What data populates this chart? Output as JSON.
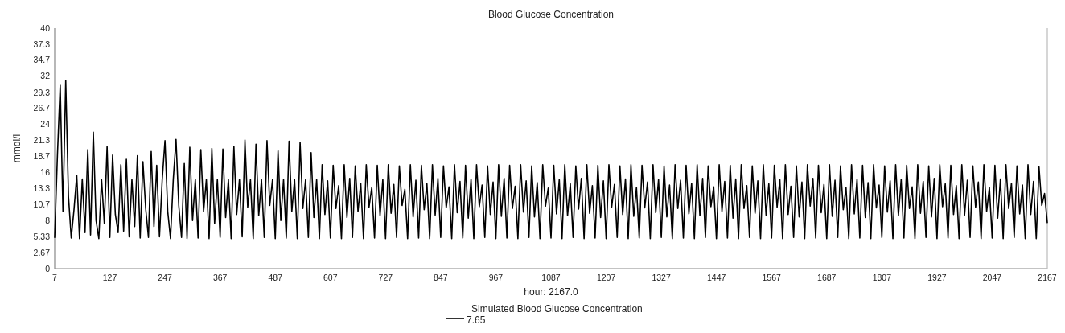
{
  "chart_data": {
    "type": "line",
    "title": "Blood Glucose Concentration",
    "xlabel": "hour: 2167.0",
    "ylabel": "mmol/l",
    "legend": "bottom",
    "annotations": [
      "7.65"
    ],
    "ref_lines": [
      {
        "axis": "x",
        "value": 2167,
        "color": "#bbbbbb"
      }
    ],
    "xlim": [
      7,
      2167
    ],
    "xticks": [
      7,
      127,
      247,
      367,
      487,
      607,
      727,
      847,
      967,
      1087,
      1207,
      1327,
      1447,
      1567,
      1687,
      1807,
      1927,
      2047,
      2167
    ],
    "ylim": [
      0,
      40
    ],
    "yticks": [
      0,
      2.67,
      5.33,
      8,
      10.7,
      13.3,
      16,
      18.7,
      21.3,
      24,
      26.7,
      29.3,
      32,
      34.7,
      37.3,
      40
    ],
    "x": [
      7,
      13,
      19,
      25,
      31,
      37,
      43,
      49,
      55,
      61,
      67,
      73,
      79,
      85,
      91,
      97,
      103,
      109,
      115,
      121,
      127,
      133,
      139,
      145,
      151,
      157,
      163,
      169,
      175,
      181,
      187,
      193,
      199,
      205,
      211,
      217,
      223,
      229,
      235,
      241,
      247,
      253,
      259,
      265,
      271,
      277,
      283,
      289,
      295,
      301,
      307,
      313,
      319,
      325,
      331,
      337,
      343,
      349,
      355,
      361,
      367,
      373,
      379,
      385,
      391,
      397,
      403,
      409,
      415,
      421,
      427,
      433,
      439,
      445,
      451,
      457,
      463,
      469,
      475,
      481,
      487,
      493,
      499,
      505,
      511,
      517,
      523,
      529,
      535,
      541,
      547,
      553,
      559,
      565,
      571,
      577,
      583,
      589,
      595,
      601,
      607,
      613,
      619,
      625,
      631,
      637,
      643,
      649,
      655,
      661,
      667,
      673,
      679,
      685,
      691,
      697,
      703,
      709,
      715,
      721,
      727,
      733,
      739,
      745,
      751,
      757,
      763,
      769,
      775,
      781,
      787,
      793,
      799,
      805,
      811,
      817,
      823,
      829,
      835,
      841,
      847,
      853,
      859,
      865,
      871,
      877,
      883,
      889,
      895,
      901,
      907,
      913,
      919,
      925,
      931,
      937,
      943,
      949,
      955,
      961,
      967,
      973,
      979,
      985,
      991,
      997,
      1003,
      1009,
      1015,
      1021,
      1027,
      1033,
      1039,
      1045,
      1051,
      1057,
      1063,
      1069,
      1075,
      1081,
      1087,
      1093,
      1099,
      1105,
      1111,
      1117,
      1123,
      1129,
      1135,
      1141,
      1147,
      1153,
      1159,
      1165,
      1171,
      1177,
      1183,
      1189,
      1195,
      1201,
      1207,
      1213,
      1219,
      1225,
      1231,
      1237,
      1243,
      1249,
      1255,
      1261,
      1267,
      1273,
      1279,
      1285,
      1291,
      1297,
      1303,
      1309,
      1315,
      1321,
      1327,
      1333,
      1339,
      1345,
      1351,
      1357,
      1363,
      1369,
      1375,
      1381,
      1387,
      1393,
      1399,
      1405,
      1411,
      1417,
      1423,
      1429,
      1435,
      1441,
      1447,
      1453,
      1459,
      1465,
      1471,
      1477,
      1483,
      1489,
      1495,
      1501,
      1507,
      1513,
      1519,
      1525,
      1531,
      1537,
      1543,
      1549,
      1555,
      1561,
      1567,
      1573,
      1579,
      1585,
      1591,
      1597,
      1603,
      1609,
      1615,
      1621,
      1627,
      1633,
      1639,
      1645,
      1651,
      1657,
      1663,
      1669,
      1675,
      1681,
      1687,
      1693,
      1699,
      1705,
      1711,
      1717,
      1723,
      1729,
      1735,
      1741,
      1747,
      1753,
      1759,
      1765,
      1771,
      1777,
      1783,
      1789,
      1795,
      1801,
      1807,
      1813,
      1819,
      1825,
      1831,
      1837,
      1843,
      1849,
      1855,
      1861,
      1867,
      1873,
      1879,
      1885,
      1891,
      1897,
      1903,
      1909,
      1915,
      1921,
      1927,
      1933,
      1939,
      1945,
      1951,
      1957,
      1963,
      1969,
      1975,
      1981,
      1987,
      1993,
      1999,
      2005,
      2011,
      2017,
      2023,
      2029,
      2035,
      2041,
      2047,
      2053,
      2059,
      2065,
      2071,
      2077,
      2083,
      2089,
      2095,
      2101,
      2107,
      2113,
      2119,
      2125,
      2131,
      2137,
      2143,
      2149,
      2155,
      2161,
      2167
    ],
    "series": [
      {
        "name": "Simulated Blood Glucose Concentration",
        "color": "#000000",
        "values": [
          5.2,
          19.0,
          30.5,
          9.5,
          31.3,
          12.0,
          5.1,
          9.8,
          15.5,
          5.0,
          14.9,
          6.0,
          19.8,
          5.6,
          22.7,
          8.0,
          5.0,
          14.8,
          7.5,
          20.3,
          5.2,
          18.9,
          9.0,
          6.0,
          17.3,
          6.2,
          18.2,
          5.3,
          14.8,
          7.0,
          18.8,
          5.1,
          17.8,
          10.0,
          5.2,
          19.5,
          7.0,
          17.2,
          5.3,
          14.8,
          21.3,
          9.5,
          5.0,
          14.8,
          21.5,
          10.5,
          5.2,
          17.5,
          5.0,
          20.2,
          8.0,
          14.8,
          5.1,
          19.8,
          9.5,
          14.8,
          5.0,
          20.0,
          7.5,
          14.8,
          5.2,
          19.9,
          8.5,
          14.8,
          5.0,
          20.3,
          9.0,
          14.8,
          5.3,
          21.4,
          10.2,
          14.8,
          5.0,
          20.7,
          8.8,
          14.8,
          5.2,
          21.3,
          10.5,
          14.8,
          5.0,
          19.6,
          8.0,
          14.8,
          5.1,
          21.2,
          9.5,
          14.8,
          5.0,
          21.0,
          10.0,
          14.8,
          5.2,
          19.3,
          8.5,
          14.8,
          5.0,
          17.3,
          9.0,
          14.6,
          5.1,
          17.2,
          10.0,
          13.8,
          5.0,
          17.3,
          8.5,
          15.0,
          5.2,
          17.1,
          9.5,
          14.2,
          5.0,
          17.3,
          10.2,
          13.5,
          5.1,
          17.2,
          8.8,
          14.8,
          5.0,
          17.3,
          9.2,
          14.0,
          5.2,
          17.1,
          10.5,
          13.2,
          5.0,
          17.3,
          8.6,
          14.7,
          5.1,
          17.2,
          9.8,
          14.1,
          5.0,
          17.3,
          8.9,
          15.0,
          5.2,
          17.1,
          10.1,
          13.6,
          5.0,
          17.3,
          9.3,
          14.5,
          5.1,
          17.2,
          8.4,
          14.9,
          5.0,
          17.3,
          10.3,
          13.9,
          5.2,
          17.1,
          9.0,
          14.4,
          5.0,
          17.3,
          8.7,
          15.0,
          5.1,
          17.2,
          10.0,
          13.7,
          5.0,
          17.3,
          9.4,
          14.6,
          5.2,
          17.1,
          8.6,
          14.3,
          5.0,
          17.3,
          10.4,
          13.4,
          5.1,
          17.2,
          9.1,
          14.8,
          5.0,
          17.3,
          8.8,
          14.1,
          5.2,
          17.1,
          9.9,
          15.0,
          5.0,
          17.3,
          9.2,
          13.8,
          5.1,
          17.2,
          8.5,
          14.6,
          5.0,
          17.3,
          10.2,
          14.0,
          5.2,
          17.1,
          9.0,
          14.9,
          5.0,
          17.3,
          8.7,
          13.5,
          5.1,
          17.2,
          10.1,
          14.4,
          5.0,
          17.3,
          9.3,
          14.8,
          5.2,
          17.1,
          8.6,
          13.9,
          5.0,
          17.3,
          10.0,
          14.7,
          5.1,
          17.2,
          9.1,
          14.2,
          5.0,
          17.3,
          8.8,
          15.0,
          5.2,
          17.1,
          10.3,
          13.6,
          5.0,
          17.3,
          9.5,
          14.5,
          5.1,
          17.2,
          8.4,
          14.9,
          5.0,
          17.3,
          10.0,
          13.8,
          5.2,
          17.1,
          9.2,
          14.6,
          5.0,
          17.3,
          8.9,
          14.1,
          5.1,
          17.2,
          10.2,
          14.8,
          5.0,
          17.3,
          9.0,
          13.7,
          5.2,
          17.1,
          8.6,
          14.4,
          5.0,
          17.3,
          10.4,
          15.0,
          5.1,
          17.2,
          9.3,
          14.0,
          5.0,
          17.3,
          8.7,
          14.7,
          5.2,
          17.1,
          9.8,
          13.5,
          5.0,
          17.3,
          9.1,
          14.9,
          5.1,
          17.2,
          8.5,
          14.3,
          5.0,
          17.3,
          10.1,
          13.9,
          5.2,
          17.1,
          9.4,
          14.6,
          5.0,
          17.3,
          8.8,
          14.8,
          5.1,
          17.2,
          10.0,
          13.6,
          5.0,
          17.3,
          9.2,
          14.5,
          5.2,
          17.1,
          8.6,
          15.0,
          5.0,
          17.3,
          10.3,
          14.1,
          5.1,
          17.2,
          9.0,
          13.8,
          5.0,
          17.3,
          8.9,
          14.7,
          5.2,
          17.1,
          10.2,
          14.4,
          5.0,
          17.3,
          9.5,
          13.5,
          5.1,
          17.2,
          8.4,
          14.9,
          5.0,
          17.3,
          10.0,
          14.2,
          5.2,
          17.1,
          9.1,
          13.9,
          5.0,
          17.3,
          9.0,
          14.5,
          5.0,
          16.9,
          10.5,
          12.5,
          7.65
        ]
      }
    ]
  }
}
